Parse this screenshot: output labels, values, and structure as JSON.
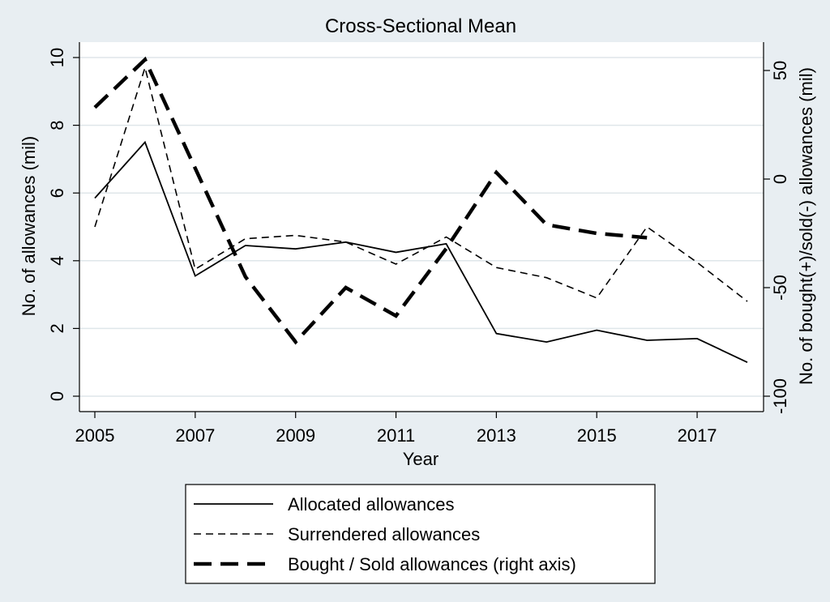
{
  "chart_data": {
    "type": "line",
    "title": "Cross-Sectional Mean",
    "xlabel": "Year",
    "ylabel_left": "No. of allowances (mil)",
    "ylabel_right": "No. of bought(+)/sold(-) allowances (mil)",
    "x": [
      2005,
      2006,
      2007,
      2008,
      2009,
      2010,
      2011,
      2012,
      2013,
      2014,
      2015,
      2016,
      2017,
      2018
    ],
    "xticks": [
      2005,
      2007,
      2009,
      2011,
      2013,
      2015,
      2017
    ],
    "xlim": [
      2005,
      2018
    ],
    "ylim_left": [
      0,
      10
    ],
    "yticks_left": [
      0,
      2,
      4,
      6,
      8,
      10
    ],
    "ylim_right": [
      -100,
      60
    ],
    "yticks_right": [
      -100,
      -50,
      0,
      50
    ],
    "grid": true,
    "legend_position": "bottom",
    "series": [
      {
        "name": "Allocated allowances",
        "axis": "left",
        "style": "solid",
        "values": [
          5.85,
          7.5,
          3.55,
          4.45,
          4.35,
          4.55,
          4.25,
          4.5,
          1.85,
          1.6,
          1.95,
          1.65,
          1.7,
          1.0
        ]
      },
      {
        "name": "Surrendered allowances",
        "axis": "left",
        "style": "dashed",
        "values": [
          5.0,
          9.7,
          3.75,
          4.65,
          4.75,
          4.55,
          3.9,
          4.7,
          3.8,
          3.5,
          2.9,
          5.0,
          3.95,
          2.8
        ]
      },
      {
        "name": "Bought / Sold allowances (right axis)",
        "axis": "right",
        "style": "longdash",
        "values": [
          33,
          55,
          5,
          -45,
          -75,
          -50,
          -63,
          -32,
          3,
          -21,
          -25,
          -27,
          null,
          null
        ]
      }
    ]
  }
}
